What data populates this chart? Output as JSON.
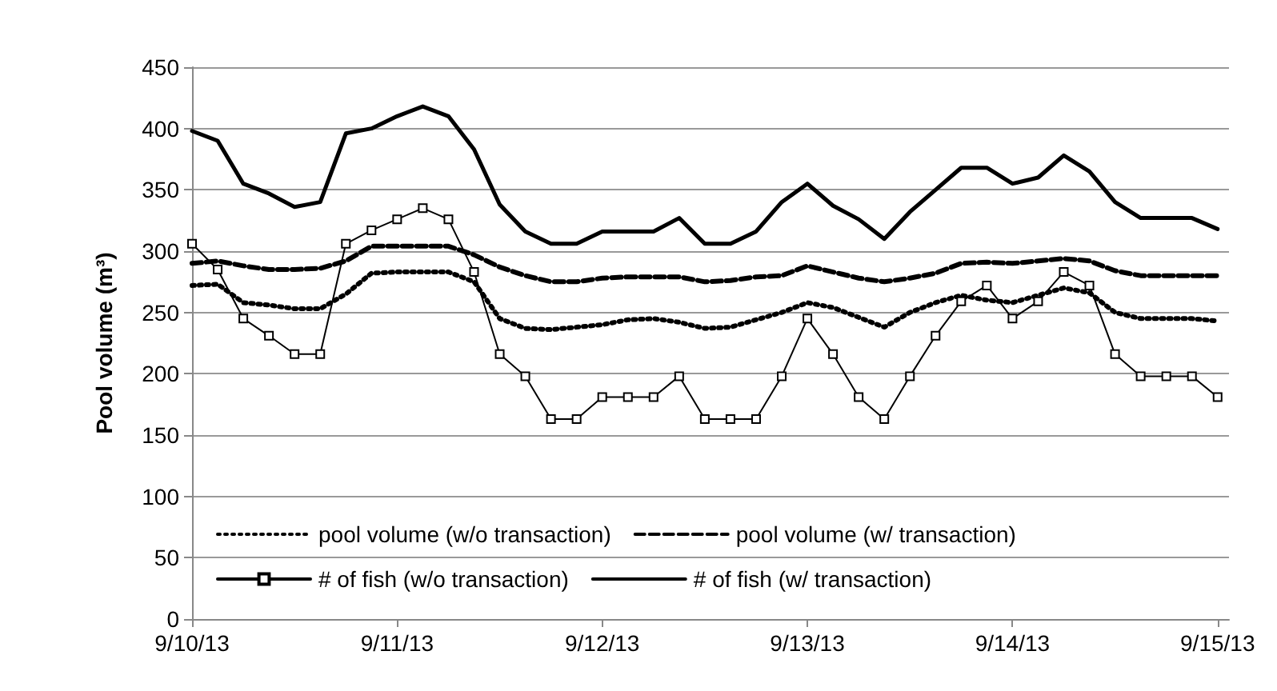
{
  "chart_data": {
    "type": "line",
    "ylabel": "Pool volume (m³)",
    "x": [
      "--09-10T00:00",
      "--09-10T03:00",
      "--09-10T06:00",
      "--09-10T09:00",
      "--09-10T12:00",
      "--09-10T15:00",
      "--09-10T18:00",
      "--09-10T21:00",
      "--09-11T00:00",
      "--09-11T03:00",
      "--09-11T06:00",
      "--09-11T09:00",
      "--09-11T12:00",
      "--09-11T15:00",
      "--09-11T18:00",
      "--09-11T21:00",
      "--09-12T00:00",
      "--09-12T03:00",
      "--09-12T06:00",
      "--09-12T09:00",
      "--09-12T12:00",
      "--09-12T15:00",
      "--09-12T18:00",
      "--09-12T21:00",
      "--09-13T00:00",
      "--09-13T03:00",
      "--09-13T06:00",
      "--09-13T09:00",
      "--09-13T12:00",
      "--09-13T15:00",
      "--09-13T18:00",
      "--09-13T21:00",
      "--09-14T00:00",
      "--09-14T03:00",
      "--09-14T06:00",
      "--09-14T09:00",
      "--09-14T12:00",
      "--09-14T15:00",
      "--09-14T18:00",
      "--09-14T21:00",
      "--09-15T00:00"
    ],
    "series": [
      {
        "name": "pool volume (w/o transaction)",
        "color": "#000000",
        "marker": "none",
        "line_style": "dotted",
        "values": [
          272,
          273,
          258,
          256,
          253,
          253,
          265,
          282,
          283,
          283,
          283,
          275,
          245,
          237,
          236,
          238,
          240,
          244,
          245,
          242,
          237,
          238,
          244,
          250,
          258,
          254,
          246,
          238,
          250,
          258,
          264,
          260,
          258,
          264,
          270,
          266,
          250,
          245,
          245,
          245,
          243
        ]
      },
      {
        "name": "pool volume (w/ transaction)",
        "color": "#000000",
        "marker": "none",
        "line_style": "dashed",
        "values": [
          290,
          292,
          288,
          285,
          285,
          286,
          292,
          304,
          304,
          304,
          304,
          297,
          287,
          280,
          275,
          275,
          278,
          279,
          279,
          279,
          275,
          276,
          279,
          280,
          288,
          283,
          278,
          275,
          278,
          282,
          290,
          291,
          290,
          292,
          294,
          292,
          284,
          280,
          280,
          280,
          280
        ]
      },
      {
        "name": "# of fish (w/o transaction)",
        "color": "#000000",
        "marker": "square",
        "line_style": "solid",
        "values": [
          306,
          285,
          245,
          231,
          216,
          216,
          306,
          317,
          326,
          335,
          326,
          283,
          216,
          198,
          163,
          163,
          181,
          181,
          181,
          198,
          163,
          163,
          163,
          198,
          245,
          216,
          181,
          163,
          198,
          231,
          259,
          272,
          245,
          259,
          283,
          272,
          216,
          198,
          198,
          198,
          181
        ]
      },
      {
        "name": "# of fish (w/ transaction)",
        "color": "#000000",
        "marker": "none",
        "line_style": "solid",
        "values": [
          398,
          390,
          355,
          347,
          336,
          340,
          396,
          400,
          410,
          418,
          410,
          383,
          338,
          316,
          306,
          306,
          316,
          316,
          316,
          327,
          306,
          306,
          316,
          340,
          355,
          337,
          326,
          310,
          332,
          350,
          368,
          368,
          355,
          360,
          378,
          365,
          340,
          327,
          327,
          327,
          318
        ]
      }
    ],
    "xlim": [
      "--09-10T00:00",
      "--09-15T01:20"
    ],
    "xticks": [
      {
        "value": "--09-10",
        "label": "9/10/13"
      },
      {
        "value": "--09-11",
        "label": "9/11/13"
      },
      {
        "value": "--09-12",
        "label": "9/12/13"
      },
      {
        "value": "--09-13",
        "label": "9/13/13"
      },
      {
        "value": "--09-14",
        "label": "9/14/13"
      },
      {
        "value": "--09-15",
        "label": "9/15/13"
      }
    ],
    "ylim": [
      0,
      450
    ],
    "yticks": [
      0,
      50,
      100,
      150,
      200,
      250,
      300,
      350,
      400,
      450
    ],
    "grid": "y",
    "legend": "bottom"
  }
}
